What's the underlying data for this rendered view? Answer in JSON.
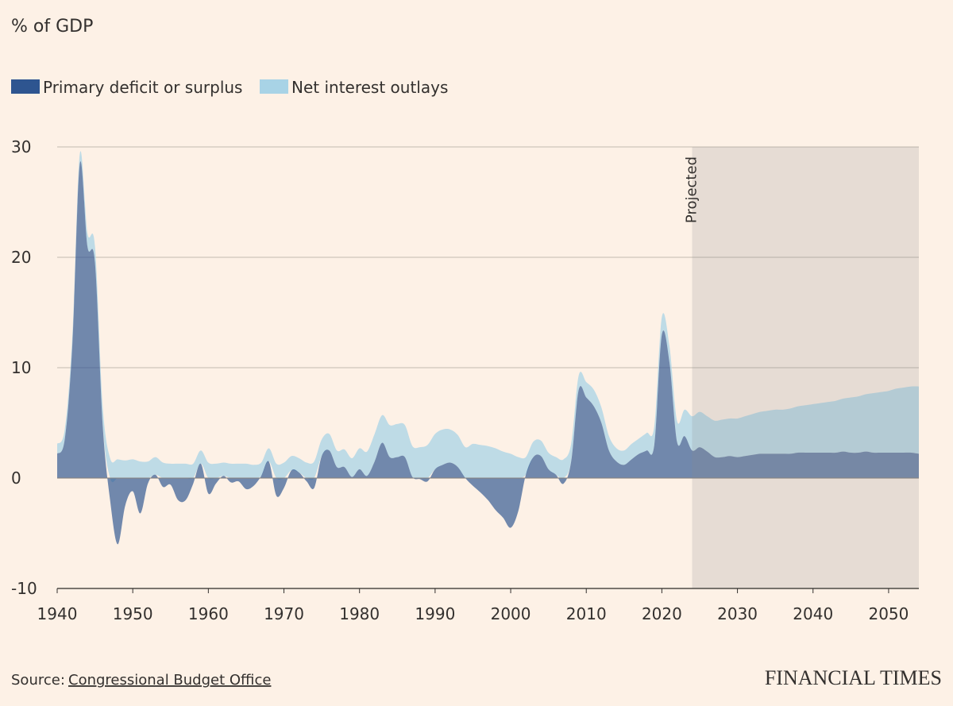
{
  "chart_data": {
    "type": "stacked-area",
    "title": "% of GDP",
    "x": [
      1940,
      1941,
      1942,
      1943,
      1944,
      1945,
      1946,
      1947,
      1948,
      1949,
      1950,
      1951,
      1952,
      1953,
      1954,
      1955,
      1956,
      1957,
      1958,
      1959,
      1960,
      1961,
      1962,
      1963,
      1964,
      1965,
      1966,
      1967,
      1968,
      1969,
      1970,
      1971,
      1972,
      1973,
      1974,
      1975,
      1976,
      1977,
      1978,
      1979,
      1980,
      1981,
      1982,
      1983,
      1984,
      1985,
      1986,
      1987,
      1988,
      1989,
      1990,
      1991,
      1992,
      1993,
      1994,
      1995,
      1996,
      1997,
      1998,
      1999,
      2000,
      2001,
      2002,
      2003,
      2004,
      2005,
      2006,
      2007,
      2008,
      2009,
      2010,
      2011,
      2012,
      2013,
      2014,
      2015,
      2016,
      2017,
      2018,
      2019,
      2020,
      2021,
      2022,
      2023,
      2024,
      2025,
      2026,
      2027,
      2028,
      2029,
      2030,
      2031,
      2032,
      2033,
      2034,
      2035,
      2036,
      2037,
      2038,
      2039,
      2040,
      2041,
      2042,
      2043,
      2044,
      2045,
      2046,
      2047,
      2048,
      2049,
      2050,
      2051,
      2052,
      2053,
      2054
    ],
    "series": [
      {
        "name": "Primary deficit or surplus",
        "color": "#2e5590",
        "values": [
          2.2,
          3.5,
          12,
          28.5,
          21,
          19.5,
          5,
          -2,
          -6,
          -2.5,
          -1.2,
          -3.2,
          -0.5,
          0.3,
          -0.8,
          -0.6,
          -2,
          -2,
          -0.5,
          1.3,
          -1.4,
          -0.5,
          0.2,
          -0.4,
          -0.3,
          -1,
          -0.7,
          0.2,
          1.5,
          -1.6,
          -0.9,
          0.7,
          0.5,
          -0.3,
          -0.9,
          2,
          2.5,
          1,
          1,
          0.1,
          0.8,
          0.2,
          1.5,
          3.2,
          1.9,
          1.9,
          1.9,
          0.1,
          -0.1,
          -0.3,
          0.8,
          1.2,
          1.4,
          1,
          0,
          -0.7,
          -1.3,
          -2,
          -2.9,
          -3.6,
          -4.5,
          -3,
          0.3,
          1.9,
          2,
          0.8,
          0.3,
          -0.5,
          1.5,
          8,
          7.3,
          6.5,
          5,
          2.5,
          1.5,
          1.2,
          1.7,
          2.2,
          2.5,
          3,
          13,
          10.5,
          3.3,
          3.8,
          2.5,
          2.8,
          2.4,
          1.9,
          1.9,
          2,
          1.9,
          2,
          2.1,
          2.2,
          2.2,
          2.2,
          2.2,
          2.2,
          2.3,
          2.3,
          2.3,
          2.3,
          2.3,
          2.3,
          2.4,
          2.3,
          2.3,
          2.4,
          2.3,
          2.3,
          2.3,
          2.3,
          2.3,
          2.3,
          2.2
        ]
      },
      {
        "name": "Net interest outlays",
        "color": "#a8d3e6",
        "values": [
          0.9,
          0.9,
          0.8,
          0.9,
          1.2,
          1.5,
          1.7,
          1.8,
          1.7,
          1.6,
          1.7,
          1.5,
          1.5,
          1.6,
          1.4,
          1.3,
          1.3,
          1.3,
          1.3,
          1.2,
          1.4,
          1.3,
          1.2,
          1.3,
          1.3,
          1.3,
          1.2,
          1.2,
          1.2,
          1.3,
          1.4,
          1.3,
          1.3,
          1.4,
          1.5,
          1.5,
          1.5,
          1.5,
          1.6,
          1.7,
          1.9,
          2.2,
          2.5,
          2.5,
          2.9,
          3.0,
          2.9,
          2.8,
          2.8,
          3.0,
          3.2,
          3.2,
          3.0,
          2.9,
          2.8,
          3.1,
          3.0,
          2.9,
          2.7,
          2.4,
          2.2,
          1.9,
          1.6,
          1.4,
          1.4,
          1.5,
          1.6,
          1.7,
          1.6,
          1.3,
          1.4,
          1.5,
          1.4,
          1.3,
          1.2,
          1.3,
          1.4,
          1.4,
          1.6,
          1.7,
          1.6,
          1.5,
          1.9,
          2.4,
          3.1,
          3.2,
          3.2,
          3.3,
          3.4,
          3.4,
          3.5,
          3.6,
          3.7,
          3.8,
          3.9,
          4.0,
          4.0,
          4.1,
          4.2,
          4.3,
          4.4,
          4.5,
          4.6,
          4.7,
          4.8,
          5.0,
          5.1,
          5.2,
          5.4,
          5.5,
          5.6,
          5.8,
          5.9,
          6.0,
          6.1
        ]
      }
    ],
    "xlim": [
      1940,
      2054
    ],
    "xticks": [
      1940,
      1950,
      1960,
      1970,
      1980,
      1990,
      2000,
      2010,
      2020,
      2030,
      2040,
      2050
    ],
    "ylim": [
      -10,
      30
    ],
    "yticks": [
      30,
      20,
      10,
      0,
      -10
    ],
    "grid": true,
    "projected_from": 2024,
    "projected_label": "Projected",
    "source_label": "Source:",
    "source": "Congressional Budget Office",
    "brand": "FINANCIAL TIMES"
  }
}
